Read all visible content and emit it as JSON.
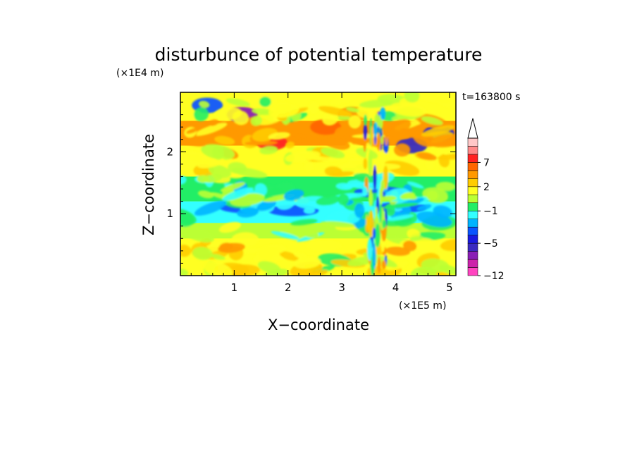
{
  "chart_data": {
    "type": "heatmap",
    "title": "disturbunce of potential temperature",
    "xlabel": "X−coordinate",
    "ylabel": "Z−coordinate",
    "x_unit": "(×1E5 m)",
    "y_unit": "(×1E4 m)",
    "time_label": "t=163800 s",
    "xlim": [
      0,
      5.12
    ],
    "ylim": [
      0,
      2.96
    ],
    "x_ticks": [
      1,
      2,
      3,
      4,
      5
    ],
    "y_ticks": [
      1,
      2
    ],
    "x_tick_labels": [
      "1",
      "2",
      "3",
      "4",
      "5"
    ],
    "y_tick_labels": [
      "1",
      "2"
    ],
    "colorbar": {
      "boundaries": [
        -12,
        -10,
        -8,
        -6,
        -5,
        -4,
        -3,
        -2,
        -1,
        0,
        1,
        2,
        3,
        5,
        7,
        8,
        9,
        10
      ],
      "shown_labels": [
        "−12",
        "−5",
        "−1",
        "2",
        "7"
      ],
      "colors": [
        "#ff44c0",
        "#cc22aa",
        "#8a1fb5",
        "#3a2ac0",
        "#1a1ae0",
        "#0a55ff",
        "#00b4ff",
        "#33ffff",
        "#22ee66",
        "#bbff33",
        "#ffff22",
        "#ffcc00",
        "#ff9900",
        "#ff6600",
        "#ff2222",
        "#ff8a8a",
        "#ffc8c8"
      ],
      "extend": "max"
    },
    "bands": [
      {
        "z_range": [
          0.0,
          0.3
        ],
        "value": 1.5
      },
      {
        "z_range": [
          0.3,
          0.6
        ],
        "value": 1.8
      },
      {
        "z_range": [
          0.6,
          0.85
        ],
        "value": 0.5
      },
      {
        "z_range": [
          0.85,
          1.2
        ],
        "value": -1.5
      },
      {
        "z_range": [
          1.2,
          1.6
        ],
        "value": -0.5
      },
      {
        "z_range": [
          1.6,
          2.1
        ],
        "value": 1.5
      },
      {
        "z_range": [
          2.1,
          2.5
        ],
        "value": 3.0
      },
      {
        "z_range": [
          2.5,
          2.96
        ],
        "value": 1.0
      }
    ],
    "features": [
      {
        "x": 1.15,
        "z": 2.6,
        "value": -8
      },
      {
        "x": 1.7,
        "z": 2.15,
        "value": 7
      },
      {
        "x": 1.2,
        "z": 1.1,
        "value": -4
      },
      {
        "x": 2.1,
        "z": 1.05,
        "value": -4
      },
      {
        "x": 3.7,
        "z": 1.35,
        "value": -4
      },
      {
        "x": 4.1,
        "z": 1.1,
        "value": -4
      },
      {
        "x": 4.3,
        "z": 2.1,
        "value": -6
      },
      {
        "x": 4.8,
        "z": 2.3,
        "value": -5
      },
      {
        "x": 2.7,
        "z": 2.4,
        "value": 5
      },
      {
        "x": 3.2,
        "z": 2.6,
        "value": 4
      },
      {
        "x": 0.5,
        "z": 2.75,
        "value": -4
      }
    ]
  }
}
